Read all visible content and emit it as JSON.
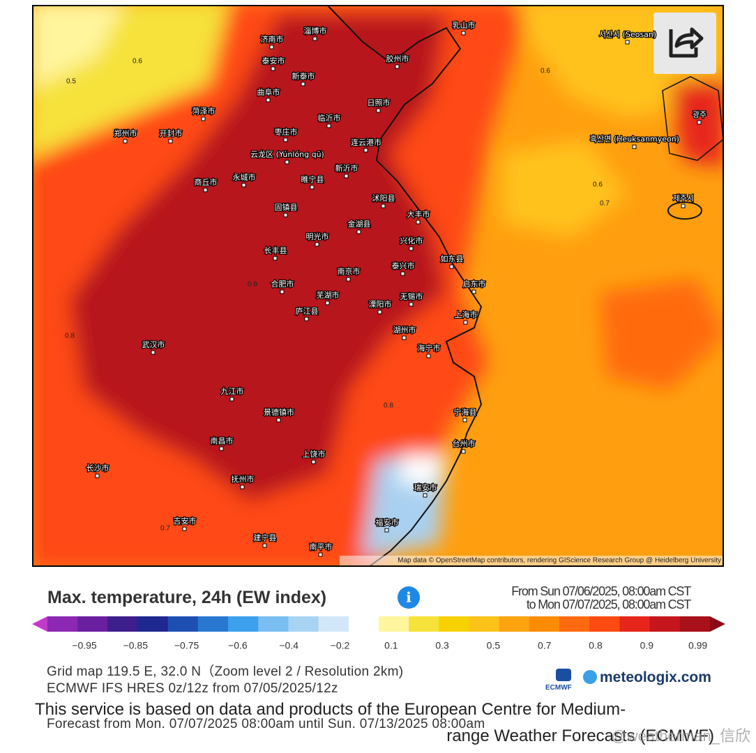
{
  "header": {
    "title": "Max. temperature, 24h (EW index)",
    "from": "From Sun 07/06/2025, 08:00am CST",
    "to": "to Mon 07/07/2025, 08:00am CST"
  },
  "map": {
    "attribution": "Map data © OpenStreetMap contributors, rendering GIScience Research Group @ Heidelberg University",
    "cities": [
      "济南市",
      "淄博市",
      "泰安市",
      "新泰市",
      "曲阜市",
      "临沂市",
      "日照市",
      "胶州市",
      "乳山市",
      "菏泽市",
      "郑州市",
      "开封市",
      "枣庄市",
      "连云港市",
      "云龙区 (Yúnlóng qū)",
      "新沂市",
      "商丘市",
      "永城市",
      "睢宁县",
      "沭阳县",
      "固镇县",
      "金湖县",
      "大丰市",
      "明光市",
      "兴化市",
      "长丰县",
      "如东县",
      "南京市",
      "泰兴市",
      "合肥市",
      "启东市",
      "芜湖市",
      "无锡市",
      "上海市",
      "溧阳市",
      "庐江县",
      "湖州市",
      "武汉市",
      "海宁市",
      "九江市",
      "景德镇市",
      "南昌市",
      "长沙市",
      "抚州市",
      "上饶市",
      "宁海县",
      "台州市",
      "瑞安市",
      "福安市",
      "吉安市",
      "建宁县",
      "南平市",
      "광주",
      "제주시",
      "흑산면 (Heuksanmyeon)",
      "서산시 (Seosan)"
    ],
    "contour_labels": [
      "0.5",
      "0.6",
      "0.6",
      "0.6",
      "0.7",
      "0.7",
      "0.8",
      "0.8",
      "0.9"
    ]
  },
  "legend": {
    "labels": [
      "−0.95",
      "−0.85",
      "−0.75",
      "−0.6",
      "−0.4",
      "−0.2",
      "0.1",
      "0.3",
      "0.5",
      "0.7",
      "0.8",
      "0.9",
      "0.99"
    ],
    "colors": [
      "#c03cc8",
      "#8c28b4",
      "#6a1fa0",
      "#3c1e8c",
      "#1e2890",
      "#1e50b4",
      "#2878d2",
      "#3ca0ec",
      "#78bef0",
      "#a8d4f4",
      "#d2e8f8",
      "#ffffff",
      "#fff59d",
      "#f6e23a",
      "#f5d200",
      "#ffc21a",
      "#ffa310",
      "#ff8c00",
      "#ff6a10",
      "#ff4a12",
      "#e6261a",
      "#c4161c",
      "#a8101a",
      "#8c0c14"
    ]
  },
  "info": {
    "grid": "Grid map 119.5 E, 32.0 N（Zoom level 2 / Resolution 2km)",
    "model": "ECMWF IFS HRES 0z/12z from 07/05/2025/12z",
    "forecast": "Forecast from Mon. 07/07/2025 08:00am until Sun. 07/13/2025 08:00am"
  },
  "logos": {
    "ecmwf": "ECMWF",
    "meteologix": "meteologix.com"
  },
  "notice": {
    "line1": "This service is based on data and products of the European Centre for Medium-",
    "line2": "range Weather Forecasts (ECMWF)"
  },
  "watermark": "@weatherman_信欣"
}
